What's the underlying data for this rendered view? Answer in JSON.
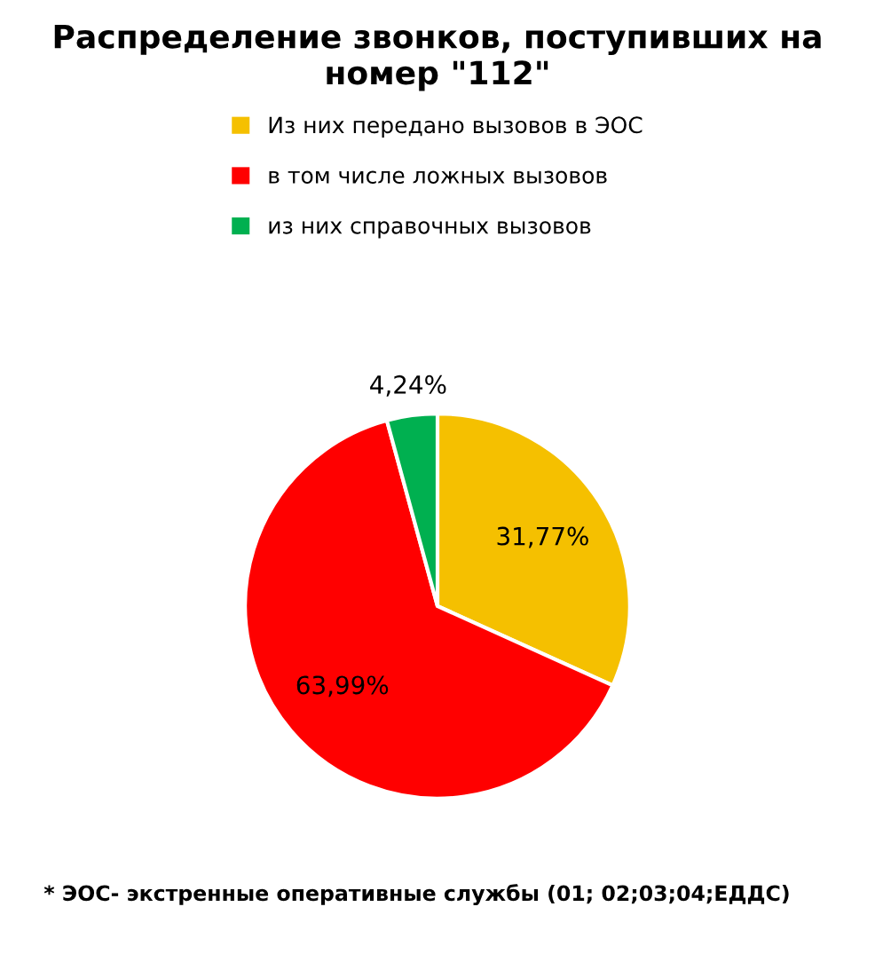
{
  "chart_data": {
    "type": "pie",
    "title": "Распределение звонков, поступивших на номер \"112\"",
    "categories": [
      "Из них передано вызовов в ЭОС",
      "в том числе ложных вызовов",
      "из них справочных вызовов"
    ],
    "values": [
      31.77,
      63.99,
      4.24
    ],
    "colors": [
      "#f5c000",
      "#ff0000",
      "#00b050"
    ],
    "value_labels": [
      "31,77%",
      "63,99%",
      "4,24%"
    ],
    "legend": "top",
    "annotations": [
      "* ЭОС- экстренные оперативные службы (01; 02;03;04;ЕДДС)"
    ]
  }
}
